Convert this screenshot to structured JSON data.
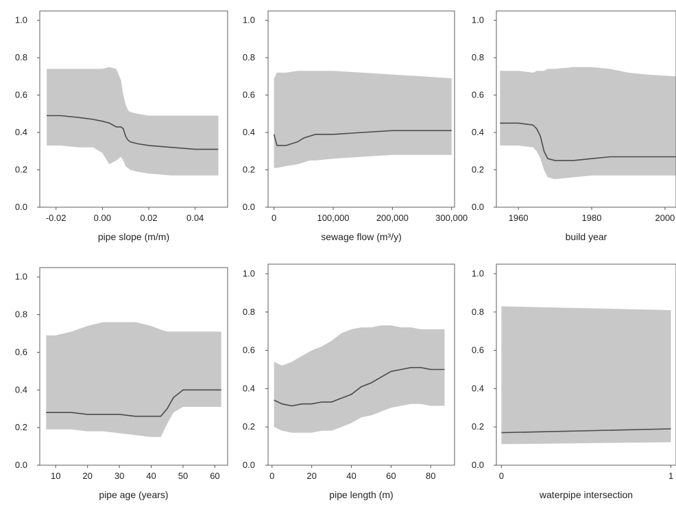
{
  "chart_data": [
    {
      "type": "area",
      "xlabel": "pipe slope (m/m)",
      "xlim": [
        -0.027,
        0.054
      ],
      "ylim": [
        0,
        1.05
      ],
      "xticks": [
        -0.02,
        0.0,
        0.02,
        0.04
      ],
      "xtick_labels": [
        "-0.02",
        "0.00",
        "0.02",
        "0.04"
      ],
      "yticks": [
        0.0,
        0.2,
        0.4,
        0.6,
        0.8,
        1.0
      ],
      "ytick_labels": [
        "0.0",
        "0.2",
        "0.4",
        "0.6",
        "0.8",
        "1.0"
      ],
      "x": [
        -0.024,
        -0.018,
        -0.01,
        -0.004,
        0.0,
        0.003,
        0.006,
        0.008,
        0.009,
        0.01,
        0.011,
        0.012,
        0.015,
        0.02,
        0.03,
        0.04,
        0.05
      ],
      "line": [
        0.49,
        0.49,
        0.48,
        0.47,
        0.46,
        0.45,
        0.43,
        0.43,
        0.42,
        0.38,
        0.36,
        0.35,
        0.34,
        0.33,
        0.32,
        0.31,
        0.31
      ],
      "lower": [
        0.33,
        0.33,
        0.32,
        0.32,
        0.29,
        0.23,
        0.25,
        0.27,
        0.25,
        0.22,
        0.21,
        0.2,
        0.19,
        0.18,
        0.17,
        0.17,
        0.17
      ],
      "upper": [
        0.74,
        0.74,
        0.74,
        0.74,
        0.74,
        0.75,
        0.74,
        0.68,
        0.6,
        0.55,
        0.52,
        0.51,
        0.5,
        0.49,
        0.49,
        0.49,
        0.49
      ]
    },
    {
      "type": "area",
      "xlabel": "sewage flow (m³/y)",
      "xlim": [
        -10000,
        305000
      ],
      "ylim": [
        0,
        1.05
      ],
      "xticks": [
        0,
        100000,
        200000,
        300000
      ],
      "xtick_labels": [
        "0",
        "100,000",
        "200,000",
        "300,000"
      ],
      "yticks": [
        0.0,
        0.2,
        0.4,
        0.6,
        0.8,
        1.0
      ],
      "ytick_labels": [
        "0.0",
        "0.2",
        "0.4",
        "0.6",
        "0.8",
        "1.0"
      ],
      "x": [
        0,
        5000,
        20000,
        40000,
        50000,
        60000,
        70000,
        100000,
        150000,
        200000,
        250000,
        300000
      ],
      "line": [
        0.39,
        0.33,
        0.33,
        0.35,
        0.37,
        0.38,
        0.39,
        0.39,
        0.4,
        0.41,
        0.41,
        0.41
      ],
      "lower": [
        0.21,
        0.21,
        0.22,
        0.23,
        0.24,
        0.25,
        0.25,
        0.26,
        0.27,
        0.28,
        0.28,
        0.28
      ],
      "upper": [
        0.69,
        0.72,
        0.72,
        0.73,
        0.73,
        0.73,
        0.73,
        0.73,
        0.72,
        0.71,
        0.7,
        0.69
      ]
    },
    {
      "type": "area",
      "xlabel": "build year",
      "xlim": [
        1954,
        2003
      ],
      "ylim": [
        0,
        1.05
      ],
      "xticks": [
        1960,
        1980,
        2000
      ],
      "xtick_labels": [
        "1960",
        "1980",
        "2000"
      ],
      "yticks": [
        0.0,
        0.2,
        0.4,
        0.6,
        0.8,
        1.0
      ],
      "ytick_labels": [
        "0.0",
        "0.2",
        "0.4",
        "0.6",
        "0.8",
        "1.0"
      ],
      "x": [
        1955,
        1960,
        1964,
        1965,
        1966,
        1967,
        1968,
        1970,
        1975,
        1980,
        1985,
        1990,
        1995,
        2003
      ],
      "line": [
        0.45,
        0.45,
        0.44,
        0.42,
        0.38,
        0.3,
        0.26,
        0.25,
        0.25,
        0.26,
        0.27,
        0.27,
        0.27,
        0.27
      ],
      "lower": [
        0.33,
        0.33,
        0.32,
        0.3,
        0.26,
        0.2,
        0.16,
        0.15,
        0.16,
        0.17,
        0.17,
        0.17,
        0.17,
        0.17
      ],
      "upper": [
        0.73,
        0.73,
        0.72,
        0.73,
        0.73,
        0.73,
        0.74,
        0.74,
        0.75,
        0.75,
        0.74,
        0.72,
        0.71,
        0.7
      ]
    },
    {
      "type": "area",
      "xlabel": "pipe age (years)",
      "xlim": [
        5,
        64
      ],
      "ylim": [
        0,
        1.05
      ],
      "xticks": [
        10,
        20,
        30,
        40,
        50,
        60
      ],
      "xtick_labels": [
        "10",
        "20",
        "30",
        "40",
        "50",
        "60"
      ],
      "yticks": [
        0.0,
        0.2,
        0.4,
        0.6,
        0.8,
        1.0
      ],
      "ytick_labels": [
        "0.0",
        "0.2",
        "0.4",
        "0.6",
        "0.8",
        "1.0"
      ],
      "x": [
        7,
        10,
        15,
        20,
        25,
        30,
        35,
        40,
        43,
        45,
        47,
        50,
        55,
        62
      ],
      "line": [
        0.28,
        0.28,
        0.28,
        0.27,
        0.27,
        0.27,
        0.26,
        0.26,
        0.26,
        0.3,
        0.36,
        0.4,
        0.4,
        0.4
      ],
      "lower": [
        0.19,
        0.19,
        0.19,
        0.18,
        0.18,
        0.17,
        0.16,
        0.15,
        0.15,
        0.22,
        0.28,
        0.31,
        0.31,
        0.31
      ],
      "upper": [
        0.69,
        0.69,
        0.71,
        0.74,
        0.76,
        0.76,
        0.76,
        0.74,
        0.72,
        0.71,
        0.71,
        0.71,
        0.71,
        0.71
      ]
    },
    {
      "type": "area",
      "xlabel": "pipe length (m)",
      "xlim": [
        -2,
        92
      ],
      "ylim": [
        0,
        1.05
      ],
      "xticks": [
        0,
        20,
        40,
        60,
        80
      ],
      "xtick_labels": [
        "0",
        "20",
        "40",
        "60",
        "80"
      ],
      "yticks": [
        0.0,
        0.2,
        0.4,
        0.6,
        0.8,
        1.0
      ],
      "ytick_labels": [
        "0.0",
        "0.2",
        "0.4",
        "0.6",
        "0.8",
        "1.0"
      ],
      "x": [
        1,
        5,
        10,
        15,
        20,
        25,
        30,
        35,
        40,
        45,
        50,
        55,
        60,
        65,
        70,
        75,
        80,
        87
      ],
      "line": [
        0.34,
        0.32,
        0.31,
        0.32,
        0.32,
        0.33,
        0.33,
        0.35,
        0.37,
        0.41,
        0.43,
        0.46,
        0.49,
        0.5,
        0.51,
        0.51,
        0.5,
        0.5
      ],
      "lower": [
        0.2,
        0.18,
        0.17,
        0.17,
        0.17,
        0.18,
        0.18,
        0.2,
        0.22,
        0.25,
        0.26,
        0.28,
        0.3,
        0.31,
        0.32,
        0.32,
        0.31,
        0.31
      ],
      "upper": [
        0.54,
        0.52,
        0.54,
        0.57,
        0.6,
        0.62,
        0.65,
        0.69,
        0.71,
        0.72,
        0.72,
        0.73,
        0.73,
        0.72,
        0.72,
        0.71,
        0.71,
        0.71
      ]
    },
    {
      "type": "area",
      "xlabel": "waterpipe intersection",
      "xlim": [
        -0.03,
        1.03
      ],
      "ylim": [
        0,
        1.05
      ],
      "xticks": [
        0,
        1
      ],
      "xtick_labels": [
        "0",
        "1"
      ],
      "yticks": [
        0.0,
        0.2,
        0.4,
        0.6,
        0.8,
        1.0
      ],
      "ytick_labels": [
        "0.0",
        "0.2",
        "0.4",
        "0.6",
        "0.8",
        "1.0"
      ],
      "x": [
        0,
        1
      ],
      "line": [
        0.17,
        0.19
      ],
      "lower": [
        0.11,
        0.12
      ],
      "upper": [
        0.83,
        0.81
      ]
    }
  ]
}
